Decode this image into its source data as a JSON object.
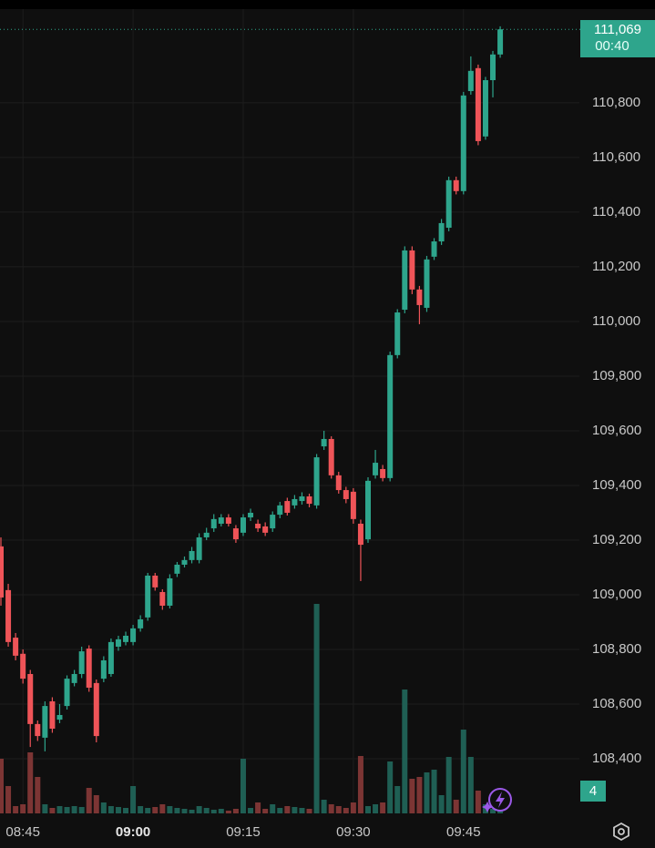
{
  "chart_data": {
    "type": "candlestick",
    "x": [
      "08:42",
      "08:43",
      "08:44",
      "08:45",
      "08:46",
      "08:47",
      "08:48",
      "08:49",
      "08:50",
      "08:51",
      "08:52",
      "08:53",
      "08:54",
      "08:55",
      "08:56",
      "08:57",
      "08:58",
      "08:59",
      "09:00",
      "09:01",
      "09:02",
      "09:03",
      "09:04",
      "09:05",
      "09:06",
      "09:07",
      "09:08",
      "09:09",
      "09:10",
      "09:11",
      "09:12",
      "09:13",
      "09:14",
      "09:15",
      "09:16",
      "09:17",
      "09:18",
      "09:19",
      "09:20",
      "09:21",
      "09:22",
      "09:23",
      "09:24",
      "09:25",
      "09:26",
      "09:27",
      "09:28",
      "09:29",
      "09:30",
      "09:31",
      "09:32",
      "09:33",
      "09:34",
      "09:35",
      "09:36",
      "09:37",
      "09:38",
      "09:39",
      "09:40",
      "09:41",
      "09:42",
      "09:43",
      "09:44",
      "09:45",
      "09:46",
      "09:47",
      "09:48",
      "09:49",
      "09:50"
    ],
    "open": [
      109177,
      109017,
      108843,
      108784,
      108710,
      108527,
      108477,
      108610,
      108543,
      108593,
      108677,
      108710,
      108803,
      108677,
      108693,
      108710,
      108810,
      108827,
      108827,
      108877,
      108917,
      109070,
      109010,
      108960,
      109077,
      109110,
      109127,
      109127,
      109210,
      109243,
      109260,
      109283,
      109243,
      109227,
      109283,
      109260,
      109250,
      109243,
      109293,
      109343,
      109327,
      109343,
      109360,
      109327,
      109543,
      109570,
      109437,
      109383,
      109377,
      109260,
      109203,
      109437,
      109460,
      109427,
      109877,
      110043,
      110260,
      110117,
      110050,
      110237,
      110293,
      110343,
      110517,
      110477,
      110843,
      110927,
      110677,
      110883,
      110977
    ],
    "high": [
      109210,
      109040,
      108860,
      108800,
      108725,
      108540,
      108610,
      108625,
      108600,
      108705,
      108725,
      108810,
      108815,
      108690,
      108775,
      108840,
      108850,
      108865,
      108890,
      108925,
      109080,
      109080,
      109020,
      109075,
      109120,
      109140,
      109175,
      109225,
      109245,
      109295,
      109295,
      109295,
      109255,
      109295,
      109315,
      109275,
      109265,
      109305,
      109340,
      109355,
      109365,
      109375,
      109370,
      109515,
      109600,
      109580,
      109450,
      109395,
      109390,
      109275,
      109430,
      109530,
      109475,
      109890,
      110045,
      110275,
      110275,
      110130,
      110240,
      110305,
      110375,
      110530,
      110530,
      110840,
      110970,
      110940,
      110895,
      110990,
      111080
    ],
    "low": [
      108960,
      108810,
      108760,
      108675,
      108443,
      108465,
      108427,
      108495,
      108530,
      108580,
      108665,
      108695,
      108645,
      108460,
      108680,
      108700,
      108795,
      108815,
      108815,
      108865,
      108905,
      109015,
      108945,
      108950,
      109065,
      109100,
      109115,
      109115,
      109200,
      109230,
      109250,
      109250,
      109190,
      109215,
      109270,
      109230,
      109215,
      109230,
      109280,
      109290,
      109315,
      109330,
      109320,
      109315,
      109530,
      109425,
      109370,
      109335,
      109260,
      109050,
      109190,
      109425,
      109415,
      109415,
      109865,
      110030,
      110100,
      109990,
      110035,
      110225,
      110280,
      110330,
      110465,
      110465,
      110830,
      110645,
      110665,
      110820,
      110965
    ],
    "close": [
      108990,
      108827,
      108777,
      108693,
      108527,
      108483,
      108593,
      108510,
      108560,
      108693,
      108710,
      108793,
      108660,
      108483,
      108760,
      108827,
      108837,
      108850,
      108877,
      108910,
      109070,
      109027,
      108960,
      109060,
      109110,
      109127,
      109160,
      109210,
      109227,
      109277,
      109283,
      109260,
      109203,
      109283,
      109300,
      109243,
      109227,
      109293,
      109327,
      109300,
      109350,
      109360,
      109333,
      109503,
      109570,
      109437,
      109383,
      109350,
      109277,
      109183,
      109417,
      109483,
      109427,
      109877,
      110033,
      110260,
      110117,
      110060,
      110227,
      110293,
      110360,
      110517,
      110477,
      110827,
      110917,
      110660,
      110883,
      110977,
      111069
    ],
    "volume": [
      60,
      30,
      8,
      10,
      67,
      40,
      10,
      6,
      8,
      7,
      8,
      7,
      28,
      20,
      12,
      8,
      7,
      6,
      30,
      8,
      6,
      7,
      10,
      8,
      6,
      5,
      4,
      8,
      6,
      4,
      5,
      3,
      5,
      60,
      6,
      12,
      5,
      10,
      6,
      8,
      7,
      6,
      5,
      230,
      15,
      10,
      8,
      6,
      12,
      63,
      8,
      10,
      12,
      57,
      30,
      136,
      38,
      40,
      45,
      48,
      20,
      62,
      15,
      92,
      62,
      25,
      10,
      5,
      3
    ],
    "up_color": "#2ea58c",
    "down_color": "#ef5458",
    "volume_up_color": "#1f5f54",
    "volume_down_color": "#7c3534",
    "ylim": [
      108200,
      111143
    ],
    "yticks": [
      {
        "value": 108400,
        "label": "108,400"
      },
      {
        "value": 108600,
        "label": "108,600"
      },
      {
        "value": 108800,
        "label": "108,800"
      },
      {
        "value": 109000,
        "label": "109,000"
      },
      {
        "value": 109200,
        "label": "109,200"
      },
      {
        "value": 109400,
        "label": "109,400"
      },
      {
        "value": 109600,
        "label": "109,600"
      },
      {
        "value": 109800,
        "label": "109,800"
      },
      {
        "value": 110000,
        "label": "110,000"
      },
      {
        "value": 110200,
        "label": "110,200"
      },
      {
        "value": 110400,
        "label": "110,400"
      },
      {
        "value": 110600,
        "label": "110,600"
      },
      {
        "value": 110800,
        "label": "110,800"
      }
    ],
    "grid": true,
    "last_price": {
      "value_label": "111,069",
      "countdown": "00:40"
    },
    "badge": "4"
  }
}
